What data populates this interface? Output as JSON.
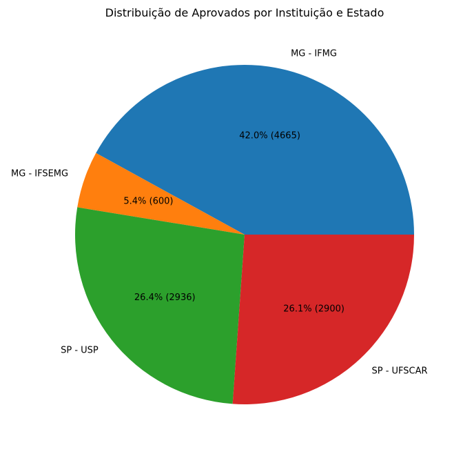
{
  "chart_data": {
    "type": "pie",
    "title": "Distribuição de Aprovados por Instituição e Estado",
    "start_angle_deg": 0,
    "direction": "counterclockwise",
    "slices": [
      {
        "label": "MG - IFMG",
        "value": 4665,
        "pct_label": "42.0% (4665)",
        "color": "#1f77b4"
      },
      {
        "label": "MG - IFSEMG",
        "value": 600,
        "pct_label": "5.4% (600)",
        "color": "#ff7f0e"
      },
      {
        "label": "SP - USP",
        "value": 2936,
        "pct_label": "26.4% (2936)",
        "color": "#2ca02c"
      },
      {
        "label": "SP - UFSCAR",
        "value": 2900,
        "pct_label": "26.1% (2900)",
        "color": "#d62728"
      }
    ]
  }
}
